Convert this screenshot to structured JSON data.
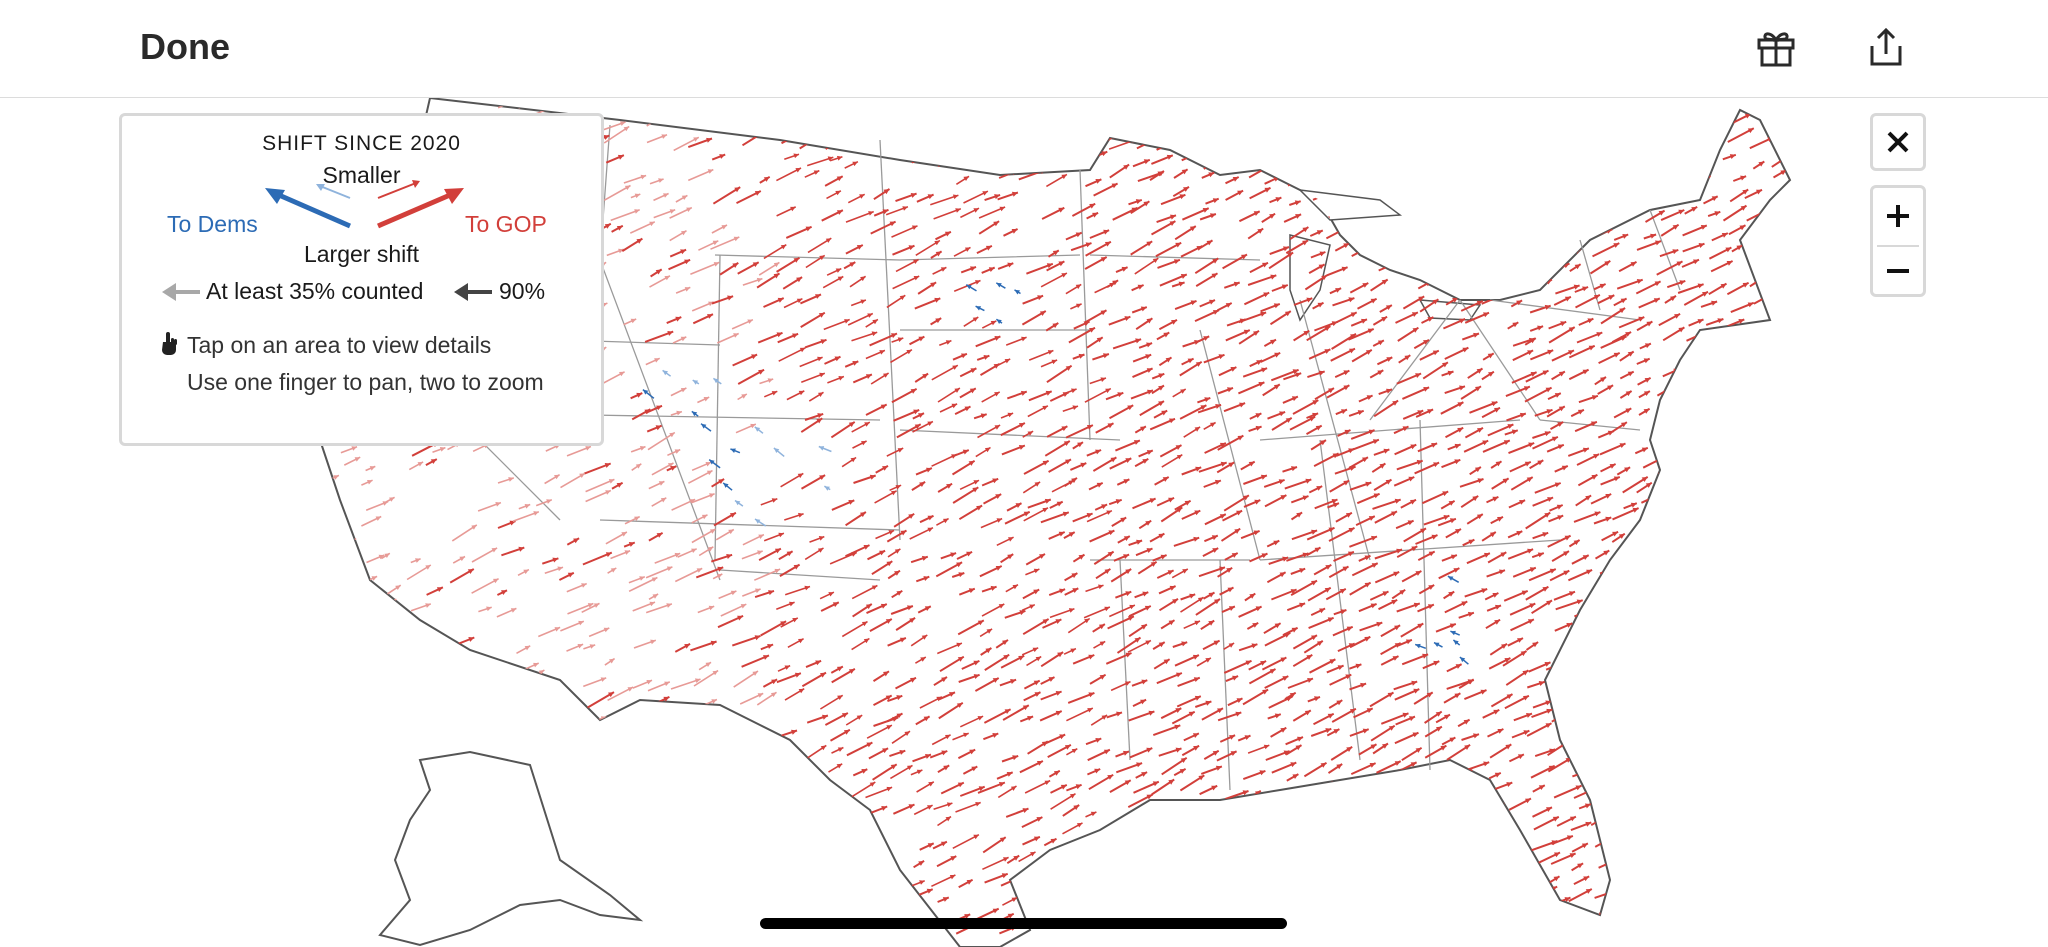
{
  "header": {
    "done_label": "Done",
    "gift_icon": "gift-icon",
    "share_icon": "share-icon"
  },
  "legend": {
    "title": "SHIFT SINCE 2020",
    "smaller_label": "Smaller",
    "to_dems_label": "To Dems",
    "to_gop_label": "To GOP",
    "larger_label": "Larger shift",
    "counted_label": "At least 35% counted",
    "ninety_label": "90%",
    "tap_hint": "Tap on an area to view details",
    "pan_hint": "Use one finger to pan, two to zoom",
    "hand_icon": "hand-pointer-icon"
  },
  "controls": {
    "close_icon": "close-icon",
    "zoom_in_icon": "zoom-in-icon",
    "zoom_out_icon": "zoom-out-icon"
  },
  "colors": {
    "gop": "#d23f3a",
    "dems": "#2c6bb5",
    "gop_light": "#e79a96",
    "dems_light": "#8fb3dc",
    "state_border": "#9a9a9a",
    "coast": "#555555"
  },
  "map": {
    "projection": "albers-usa",
    "arrow_direction_gop": "up-right",
    "arrow_direction_dems": "up-left"
  }
}
